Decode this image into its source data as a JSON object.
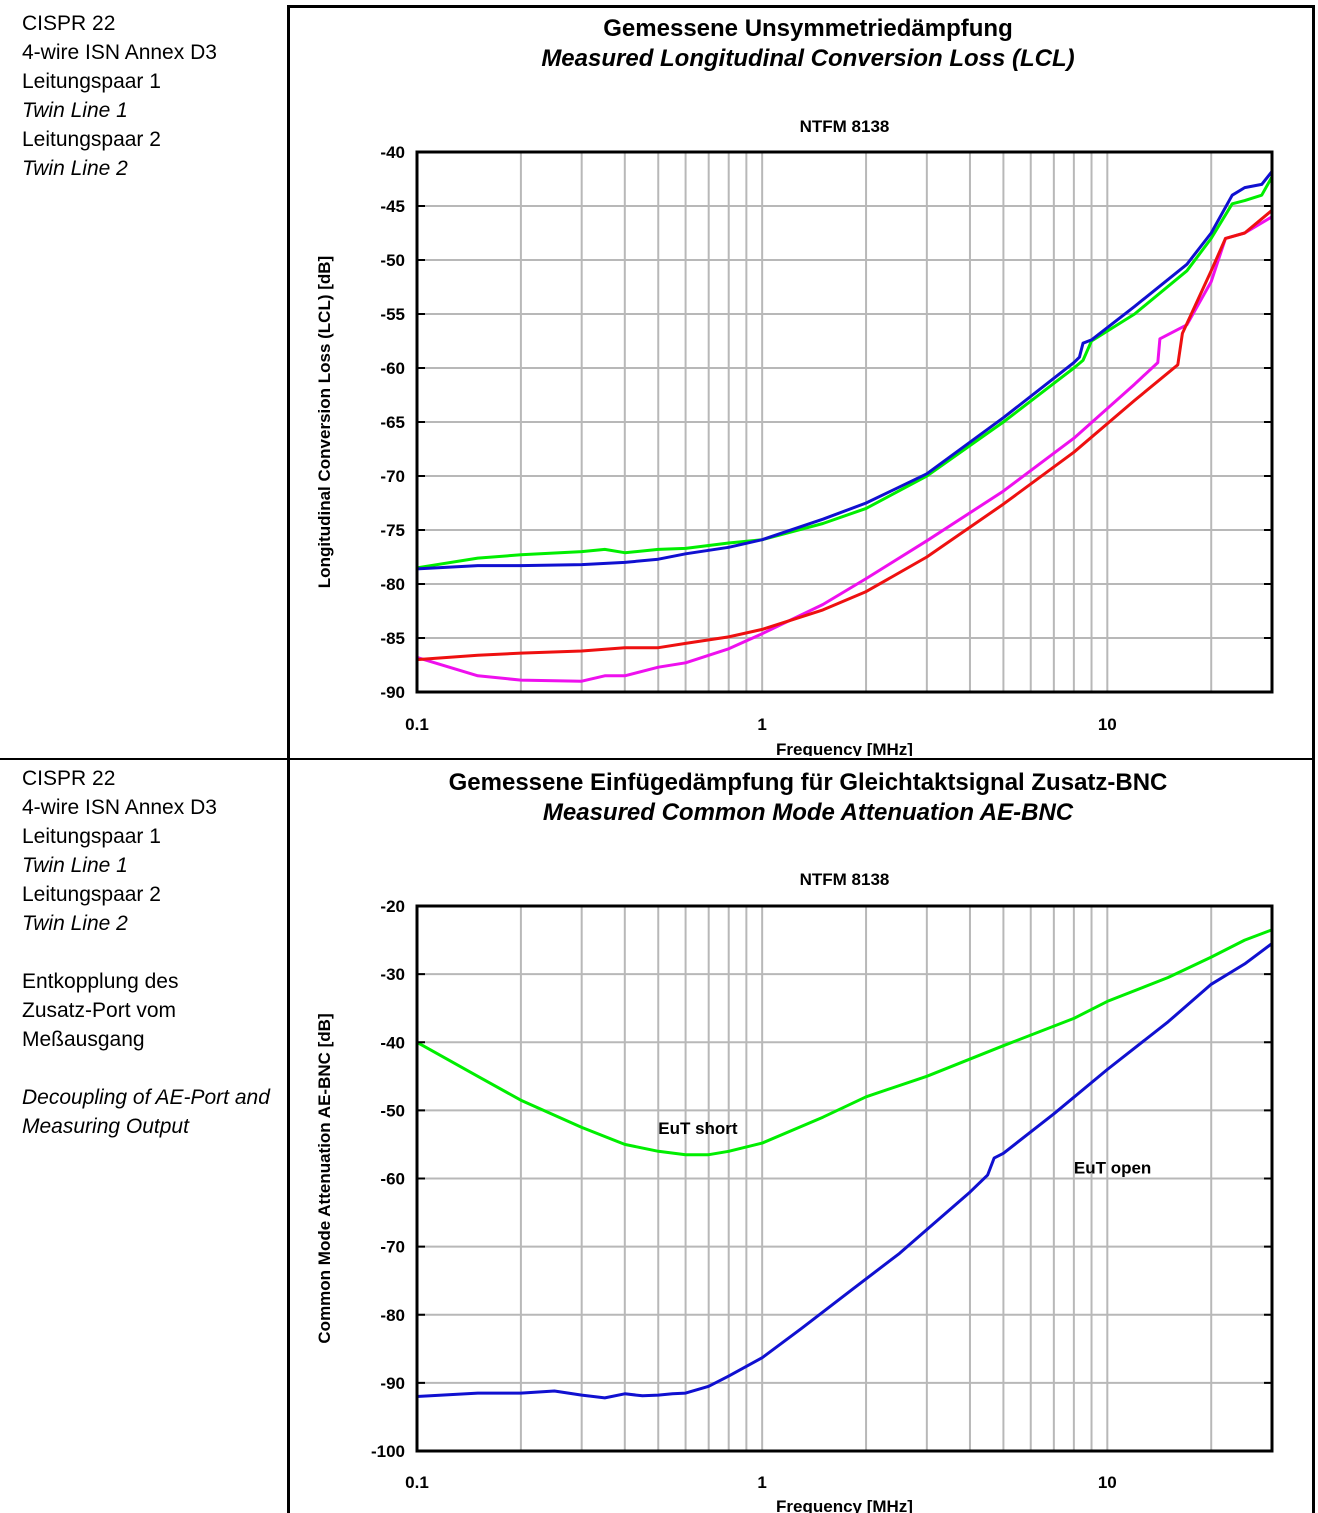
{
  "sections": [
    {
      "sidebar": [
        "CISPR 22",
        "4-wire ISN Annex  D3",
        "Leitungspaar 1",
        "Twin Line 1",
        "Leitungspaar 2",
        "Twin Line 2"
      ],
      "title_de": "Gemessene Unsymmetriedämpfung",
      "title_en": "Measured Longitudinal Conversion  Loss (LCL)"
    },
    {
      "sidebar": [
        "CISPR 22",
        "4-wire ISN Annex  D3",
        "Leitungspaar 1",
        "Twin Line 1",
        "Leitungspaar 2",
        "Twin Line 2",
        "",
        "Entkopplung des Zusatz-Port vom Meßausgang",
        "",
        "Decoupling of AE-Port and Measuring Output"
      ],
      "title_de": "Gemessene Einfügedämpfung für Gleichtaktsignal Zusatz-BNC",
      "title_en": "Measured Common Mode Attenuation AE-BNC"
    }
  ],
  "chart_data": [
    {
      "type": "line",
      "title": "NTFM 8138",
      "xlabel": "Frequency [MHz]",
      "ylabel": "Longitudinal Conversion Loss (LCL) [dB]",
      "xscale": "log",
      "xlim": [
        0.1,
        30
      ],
      "ylim": [
        -90,
        -40
      ],
      "xticks": [
        "0.1",
        "1",
        "10"
      ],
      "yticks": [
        "-40",
        "-45",
        "-50",
        "-55",
        "-60",
        "-65",
        "-70",
        "-75",
        "-80",
        "-85",
        "-90"
      ],
      "grid": true,
      "series": [
        {
          "color": "#00ee00",
          "x": [
            0.1,
            0.15,
            0.2,
            0.3,
            0.35,
            0.4,
            0.5,
            0.6,
            0.8,
            1,
            1.5,
            2,
            3,
            5,
            8,
            8.5,
            9,
            12,
            17,
            20,
            23,
            25,
            28,
            30
          ],
          "y": [
            -78.5,
            -77.6,
            -77.3,
            -77,
            -76.8,
            -77.1,
            -76.8,
            -76.7,
            -76.2,
            -75.9,
            -74.4,
            -73,
            -70,
            -65,
            -60,
            -59.3,
            -57.5,
            -55,
            -51,
            -48,
            -44.8,
            -44.5,
            -44,
            -42.3
          ]
        },
        {
          "color": "#1010d0",
          "x": [
            0.1,
            0.15,
            0.2,
            0.3,
            0.4,
            0.5,
            0.6,
            0.8,
            1,
            1.5,
            2,
            3,
            5,
            8,
            8.3,
            8.5,
            9,
            12,
            17,
            20,
            23,
            25,
            28,
            30
          ],
          "y": [
            -78.6,
            -78.3,
            -78.3,
            -78.2,
            -78,
            -77.7,
            -77.2,
            -76.6,
            -75.9,
            -74,
            -72.5,
            -69.8,
            -64.6,
            -59.5,
            -59,
            -57.7,
            -57.4,
            -54.3,
            -50.4,
            -47.5,
            -44,
            -43.3,
            -43,
            -41.8
          ]
        },
        {
          "color": "#ee10ee",
          "x": [
            0.1,
            0.15,
            0.2,
            0.3,
            0.35,
            0.4,
            0.5,
            0.6,
            0.8,
            1,
            1.5,
            2,
            3,
            5,
            8,
            12,
            14,
            14.2,
            17,
            20,
            22,
            25,
            30
          ],
          "y": [
            -86.8,
            -88.5,
            -88.9,
            -89,
            -88.5,
            -88.5,
            -87.7,
            -87.3,
            -86,
            -84.6,
            -81.9,
            -79.5,
            -76,
            -71.4,
            -66.5,
            -61.5,
            -59.5,
            -57.3,
            -56,
            -52,
            -48,
            -47.5,
            -46
          ]
        },
        {
          "color": "#ee1010",
          "x": [
            0.1,
            0.15,
            0.2,
            0.3,
            0.4,
            0.5,
            0.6,
            0.8,
            1,
            1.5,
            2,
            3,
            5,
            8,
            12,
            16,
            16.5,
            20,
            22,
            25,
            30
          ],
          "y": [
            -87,
            -86.6,
            -86.4,
            -86.2,
            -85.9,
            -85.9,
            -85.5,
            -84.9,
            -84.2,
            -82.4,
            -80.7,
            -77.5,
            -72.6,
            -67.8,
            -63,
            -59.7,
            -56.8,
            -51,
            -48,
            -47.5,
            -45.4
          ]
        }
      ]
    },
    {
      "type": "line",
      "title": "NTFM 8138",
      "xlabel": "Frequency [MHz]",
      "ylabel": "Common Mode Attenuation AE-BNC [dB]",
      "xscale": "log",
      "xlim": [
        0.1,
        30
      ],
      "ylim": [
        -100,
        -20
      ],
      "xticks": [
        "0.1",
        "1",
        "10"
      ],
      "yticks": [
        "-20",
        "-30",
        "-40",
        "-50",
        "-60",
        "-70",
        "-80",
        "-90",
        "-100"
      ],
      "grid": true,
      "annotations": [
        "EuT short",
        "EuT open"
      ],
      "series": [
        {
          "name": "EuT short",
          "color": "#00ee00",
          "x": [
            0.1,
            0.15,
            0.2,
            0.3,
            0.4,
            0.5,
            0.6,
            0.7,
            0.8,
            1,
            1.5,
            2,
            3,
            5,
            8,
            10,
            15,
            20,
            25,
            30
          ],
          "y": [
            -40,
            -45,
            -48.5,
            -52.5,
            -55,
            -56,
            -56.5,
            -56.5,
            -56,
            -54.8,
            -51,
            -48,
            -45,
            -40.5,
            -36.5,
            -34,
            -30.5,
            -27.5,
            -25,
            -23.5
          ]
        },
        {
          "name": "EuT open",
          "color": "#1010d0",
          "x": [
            0.1,
            0.15,
            0.2,
            0.25,
            0.3,
            0.35,
            0.4,
            0.45,
            0.5,
            0.55,
            0.6,
            0.7,
            0.8,
            1,
            1.3,
            1.8,
            2.5,
            3,
            4,
            4.5,
            4.7,
            5,
            7,
            10,
            15,
            20,
            25,
            30
          ],
          "y": [
            -92,
            -91.5,
            -91.5,
            -91.2,
            -91.8,
            -92.2,
            -91.6,
            -91.9,
            -91.8,
            -91.6,
            -91.5,
            -90.5,
            -89,
            -86.3,
            -82,
            -76.5,
            -71,
            -67.5,
            -62,
            -59.5,
            -57,
            -56.3,
            -50.5,
            -44,
            -37,
            -31.5,
            -28.5,
            -25.5
          ]
        }
      ]
    }
  ]
}
